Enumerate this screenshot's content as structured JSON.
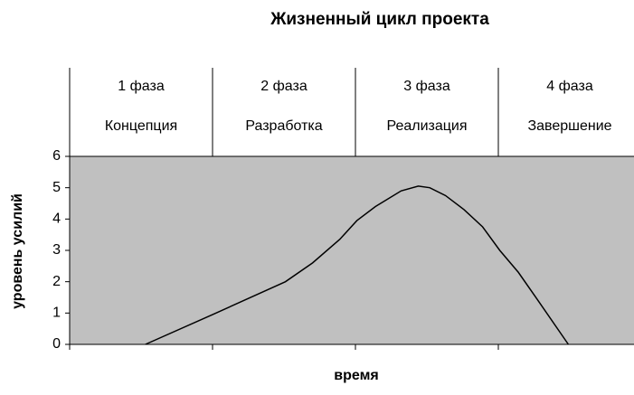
{
  "chart_data": {
    "type": "line",
    "title": "Жизненный цикл проекта",
    "xlabel": "время",
    "ylabel": "уровень усилий",
    "phases": [
      {
        "number": "1 фаза",
        "name": "Концепция"
      },
      {
        "number": "2 фаза",
        "name": "Разработка"
      },
      {
        "number": "3 фаза",
        "name": "Реализация"
      },
      {
        "number": "4 фаза",
        "name": "Завершение"
      }
    ],
    "x": [
      0.53,
      1.0,
      1.51,
      1.7,
      1.89,
      2.01,
      2.14,
      2.32,
      2.44,
      2.52,
      2.63,
      2.76,
      2.89,
      3.01,
      3.14,
      3.27,
      3.49
    ],
    "series": [
      {
        "color": "#000000",
        "values": [
          0,
          0.95,
          2.0,
          2.6,
          3.35,
          3.95,
          4.4,
          4.9,
          5.05,
          5.0,
          4.75,
          4.3,
          3.75,
          3.0,
          2.3,
          1.45,
          0
        ]
      }
    ],
    "xlim": [
      0,
      4
    ],
    "xticks": [
      0,
      1,
      2,
      3,
      4
    ],
    "ylim": [
      0,
      6
    ],
    "yticks": [
      0,
      1,
      2,
      3,
      4,
      5,
      6
    ],
    "background": "#c0c0c0"
  }
}
